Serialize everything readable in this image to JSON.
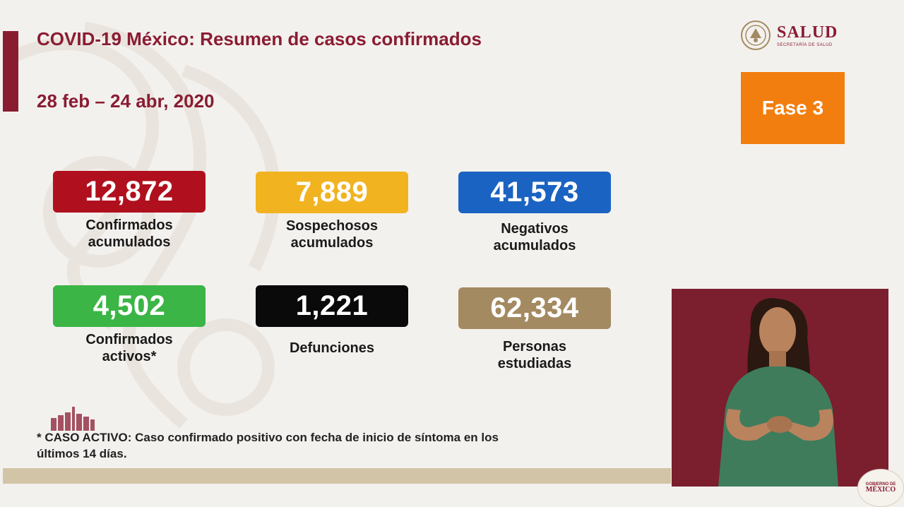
{
  "header": {
    "title": "COVID-19 México: Resumen de casos confirmados",
    "date_range": "28 feb – 24 abr, 2020"
  },
  "logo": {
    "name": "SALUD",
    "subtitle": "SECRETARÍA DE SALUD",
    "icon": "coat-of-arms-icon"
  },
  "phase": {
    "label": "Fase 3",
    "color": "#f27e0f"
  },
  "stats": [
    {
      "value": "12,872",
      "label_line1": "Confirmados",
      "label_line2": "acumulados",
      "color": "#b0101e"
    },
    {
      "value": "7,889",
      "label_line1": "Sospechosos",
      "label_line2": "acumulados",
      "color": "#f2b321"
    },
    {
      "value": "41,573",
      "label_line1": "Negativos",
      "label_line2": "acumulados",
      "color": "#1b63c2"
    },
    {
      "value": "4,502",
      "label_line1": "Confirmados",
      "label_line2": "activos*",
      "color": "#3bb546"
    },
    {
      "value": "1,221",
      "label_line1": "Defunciones",
      "label_line2": "",
      "color": "#0a0a0a"
    },
    {
      "value": "62,334",
      "label_line1": "Personas",
      "label_line2": "estudiadas",
      "color": "#a48a61"
    }
  ],
  "footnote": {
    "line1": "* CASO ACTIVO: Caso confirmado positivo con fecha de inicio de síntoma en los",
    "line2": "últimos 14 días."
  },
  "gob_logo": {
    "top": "GOBIERNO DE",
    "bottom": "MÉXICO"
  },
  "colors": {
    "accent": "#8a1c32",
    "background": "#f3f1ee",
    "interpreter_bg": "#7b1e2d"
  }
}
